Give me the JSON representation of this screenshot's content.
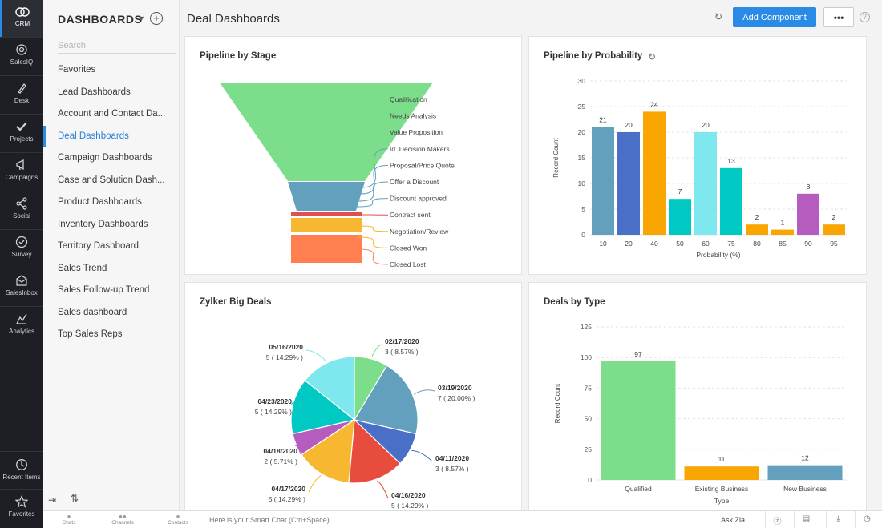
{
  "rail": {
    "items": [
      {
        "label": "CRM",
        "icon": "crm-icon"
      },
      {
        "label": "SalesIQ",
        "icon": "salesiq-icon"
      },
      {
        "label": "Desk",
        "icon": "desk-icon"
      },
      {
        "label": "Projects",
        "icon": "projects-icon"
      },
      {
        "label": "Campaigns",
        "icon": "campaigns-icon"
      },
      {
        "label": "Social",
        "icon": "social-icon"
      },
      {
        "label": "Survey",
        "icon": "survey-icon"
      },
      {
        "label": "SalesInbox",
        "icon": "salesinbox-icon"
      },
      {
        "label": "Analytics",
        "icon": "analytics-icon"
      }
    ],
    "bottom": [
      {
        "label": "Recent Items",
        "icon": "recent-items-icon"
      },
      {
        "label": "Favorites",
        "icon": "favorites-icon"
      }
    ]
  },
  "sidebar": {
    "heading": "DASHBOARDS",
    "search_placeholder": "Search",
    "items": [
      "Favorites",
      "Lead Dashboards",
      "Account and Contact Da...",
      "Deal Dashboards",
      "Campaign Dashboards",
      "Case and Solution Dash...",
      "Product Dashboards",
      "Inventory Dashboards",
      "Territory Dashboard",
      "Sales Trend",
      "Sales Follow-up Trend",
      "Sales dashboard",
      "Top Sales Reps"
    ],
    "active_index": 3
  },
  "header": {
    "title": "Deal Dashboards",
    "add_component": "Add Component",
    "more": "•••",
    "help": "?"
  },
  "panels": {
    "pipeline_stage": "Pipeline by Stage",
    "pipeline_probability": "Pipeline by Probability",
    "big_deals": "Zylker Big Deals",
    "deals_type": "Deals by Type"
  },
  "bottombar": {
    "tabs": [
      "Chats",
      "Channels",
      "Contacts"
    ],
    "smart_chat": "Here is your Smart Chat (Ctrl+Space)",
    "ask_zia": "Ask Zia"
  },
  "chart_data": [
    {
      "type": "funnel",
      "title": "Pipeline by Stage",
      "stages": [
        {
          "name": "Qualification",
          "color": "#7cdd8b"
        },
        {
          "name": "Needs Analysis",
          "color": "#7cdd8b"
        },
        {
          "name": "Value Proposition",
          "color": "#7cdd8b"
        },
        {
          "name": "Id. Decision Makers",
          "color": "#62a0bd"
        },
        {
          "name": "Proposal/Price Quote",
          "color": "#62a0bd"
        },
        {
          "name": "Offer a Discount",
          "color": "#62a0bd"
        },
        {
          "name": "Discount approved",
          "color": "#62a0bd"
        },
        {
          "name": "Contract sent",
          "color": "#e0504e"
        },
        {
          "name": "Negotiation/Review",
          "color": "#f7b731"
        },
        {
          "name": "Closed Won",
          "color": "#f7b731"
        },
        {
          "name": "Closed Lost",
          "color": "#ff7f50"
        }
      ]
    },
    {
      "type": "bar",
      "title": "Pipeline by Probability",
      "xlabel": "Probability (%)",
      "ylabel": "Record Count",
      "ylim": [
        0,
        30
      ],
      "yticks": [
        0,
        5,
        10,
        15,
        20,
        25,
        30
      ],
      "categories": [
        "10",
        "20",
        "40",
        "50",
        "60",
        "75",
        "80",
        "85",
        "90",
        "95"
      ],
      "values": [
        21,
        20,
        24,
        7,
        20,
        13,
        2,
        1,
        8,
        2
      ],
      "colors": [
        "#62a0bd",
        "#4a6fc7",
        "#f9a602",
        "#00c9c3",
        "#7ee8ee",
        "#00c9c3",
        "#f9a602",
        "#f9a602",
        "#b75cbf",
        "#f9a602"
      ]
    },
    {
      "type": "pie",
      "title": "Zylker Big Deals",
      "slices": [
        {
          "date": "02/17/2020",
          "label": "3 ( 8.57% )",
          "value": 3,
          "color": "#7cdd8b"
        },
        {
          "date": "03/19/2020",
          "label": "7 ( 20.00% )",
          "value": 7,
          "color": "#62a0bd"
        },
        {
          "date": "04/11/2020",
          "label": "3 ( 8.57% )",
          "value": 3,
          "color": "#4a6fc7"
        },
        {
          "date": "04/16/2020",
          "label": "5 ( 14.29% )",
          "value": 5,
          "color": "#e84c3d"
        },
        {
          "date": "04/17/2020",
          "label": "5 ( 14.29% )",
          "value": 5,
          "color": "#f7b731"
        },
        {
          "date": "04/18/2020",
          "label": "2 ( 5.71% )",
          "value": 2,
          "color": "#b75cbf"
        },
        {
          "date": "04/23/2020",
          "label": "5 ( 14.29% )",
          "value": 5,
          "color": "#00c9c3"
        },
        {
          "date": "05/16/2020",
          "label": "5 ( 14.29% )",
          "value": 5,
          "color": "#7ee8ee"
        }
      ]
    },
    {
      "type": "bar",
      "title": "Deals by Type",
      "xlabel": "Type",
      "ylabel": "Record Count",
      "ylim": [
        0,
        125
      ],
      "yticks": [
        0,
        25,
        50,
        75,
        100,
        125
      ],
      "categories": [
        "Qualified",
        "Existing Business",
        "New Business"
      ],
      "values": [
        97,
        11,
        12
      ],
      "colors": [
        "#7cdd8b",
        "#f9a602",
        "#62a0bd"
      ]
    }
  ]
}
